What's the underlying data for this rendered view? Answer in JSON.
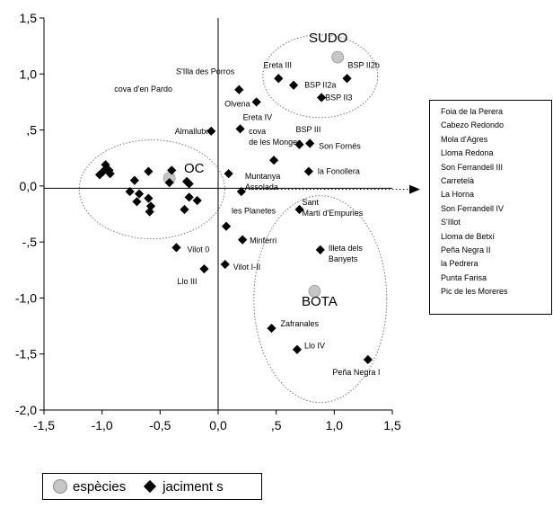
{
  "chart_data": {
    "type": "scatter",
    "title": "",
    "xlabel": "",
    "ylabel": "",
    "xlim": [
      -1.5,
      1.5
    ],
    "ylim": [
      -2.0,
      1.5
    ],
    "x_ticks": [
      "-1,5",
      "-1,0",
      "-0,5",
      "0,0",
      ",5",
      "1,0",
      "1,5"
    ],
    "y_ticks": [
      "1,5",
      "1,0",
      ",5",
      "0,0",
      "-,5",
      "-1,0",
      "-1,5",
      "-2,0"
    ],
    "series": [
      {
        "name": "espècies",
        "marker": "circle",
        "color": "#c6c6c6",
        "points": [
          {
            "x": 1.03,
            "y": 1.15,
            "label": ""
          },
          {
            "x": -0.42,
            "y": 0.07,
            "label": ""
          },
          {
            "x": 0.83,
            "y": -0.94,
            "label": ""
          }
        ]
      },
      {
        "name": "jaciments",
        "marker": "diamond",
        "color": "#000000",
        "points": [
          {
            "x": 0.52,
            "y": 0.96,
            "label": "Ereta III"
          },
          {
            "x": 0.65,
            "y": 0.9,
            "label": "BSP II2a"
          },
          {
            "x": 1.11,
            "y": 0.96,
            "label": "BSP II2b"
          },
          {
            "x": 0.89,
            "y": 0.79,
            "label": "BSP II3"
          },
          {
            "x": 0.18,
            "y": 0.86,
            "label": "S'Illa des Porros"
          },
          {
            "x": 0.33,
            "y": 0.75,
            "label": "Olvena"
          },
          {
            "x": -0.06,
            "y": 0.49,
            "label": "Almallutx"
          },
          {
            "x": 0.19,
            "y": 0.51,
            "label": "Ereta IV"
          },
          {
            "x": 0.7,
            "y": 0.37,
            "label": "BSP III"
          },
          {
            "x": 0.79,
            "y": 0.38,
            "label": "Son Fornés"
          },
          {
            "x": 0.48,
            "y": 0.23,
            "label": "cova de les Monges"
          },
          {
            "x": 0.78,
            "y": 0.13,
            "label": "la Fonollera"
          },
          {
            "x": 0.09,
            "y": 0.11,
            "label": ""
          },
          {
            "x": 0.2,
            "y": -0.05,
            "label": "Muntanya Assolada"
          },
          {
            "x": 0.7,
            "y": -0.21,
            "label": "Sant Martí d'Empuries"
          },
          {
            "x": 0.07,
            "y": -0.36,
            "label": "les Planetes"
          },
          {
            "x": 0.21,
            "y": -0.48,
            "label": "Minferri"
          },
          {
            "x": -0.36,
            "y": -0.55,
            "label": "Vilot 0"
          },
          {
            "x": 0.88,
            "y": -0.57,
            "label": "Illeta dels Banyets"
          },
          {
            "x": 0.06,
            "y": -0.7,
            "label": "Vilot I-II"
          },
          {
            "x": -0.12,
            "y": -0.74,
            "label": "Llo III"
          },
          {
            "x": 0.46,
            "y": -1.27,
            "label": "Zafranales"
          },
          {
            "x": 0.68,
            "y": -1.46,
            "label": "Llo IV"
          },
          {
            "x": 1.29,
            "y": -1.55,
            "label": "Peña Negra I"
          },
          {
            "x": -0.97,
            "y": 0.19,
            "label": ""
          },
          {
            "x": -0.94,
            "y": 0.14,
            "label": ""
          },
          {
            "x": -0.99,
            "y": 0.13,
            "label": ""
          },
          {
            "x": -0.93,
            "y": 0.11,
            "label": ""
          },
          {
            "x": -1.02,
            "y": 0.1,
            "label": ""
          },
          {
            "x": -0.72,
            "y": 0.05,
            "label": ""
          },
          {
            "x": -0.6,
            "y": 0.13,
            "label": ""
          },
          {
            "x": -0.4,
            "y": 0.14,
            "label": ""
          },
          {
            "x": -0.42,
            "y": 0.03,
            "label": ""
          },
          {
            "x": -0.27,
            "y": 0.04,
            "label": ""
          },
          {
            "x": -0.25,
            "y": 0.02,
            "label": ""
          },
          {
            "x": -0.76,
            "y": -0.05,
            "label": ""
          },
          {
            "x": -0.68,
            "y": -0.07,
            "label": ""
          },
          {
            "x": -0.6,
            "y": -0.11,
            "label": ""
          },
          {
            "x": -0.7,
            "y": -0.14,
            "label": ""
          },
          {
            "x": -0.58,
            "y": -0.18,
            "label": ""
          },
          {
            "x": -0.59,
            "y": -0.23,
            "label": ""
          },
          {
            "x": -0.25,
            "y": -0.1,
            "label": ""
          },
          {
            "x": -0.18,
            "y": -0.13,
            "label": ""
          },
          {
            "x": -0.29,
            "y": -0.21,
            "label": ""
          }
        ]
      }
    ],
    "group_labels": [
      "SUDO",
      "OC",
      "BOTA"
    ],
    "extra_labels": [
      "cova d'en Pardo"
    ],
    "legend_position": "bottom-left",
    "grid": false
  },
  "site_list": [
    "Foia de la Perera",
    "Cabezo Redondo",
    "Mola d'Agres",
    "Lloma Redona",
    "Son Ferrandell III",
    "Carretelà",
    "La Horna",
    "Son Ferrandell IV",
    "S'Illot",
    "Lloma de Betxí",
    "Peña Negra II",
    "la Pedrera",
    "Punta Farisa",
    "Pic de les Moreres"
  ],
  "legend": {
    "species_label": "espècies",
    "sites_label": "jaciment s"
  }
}
